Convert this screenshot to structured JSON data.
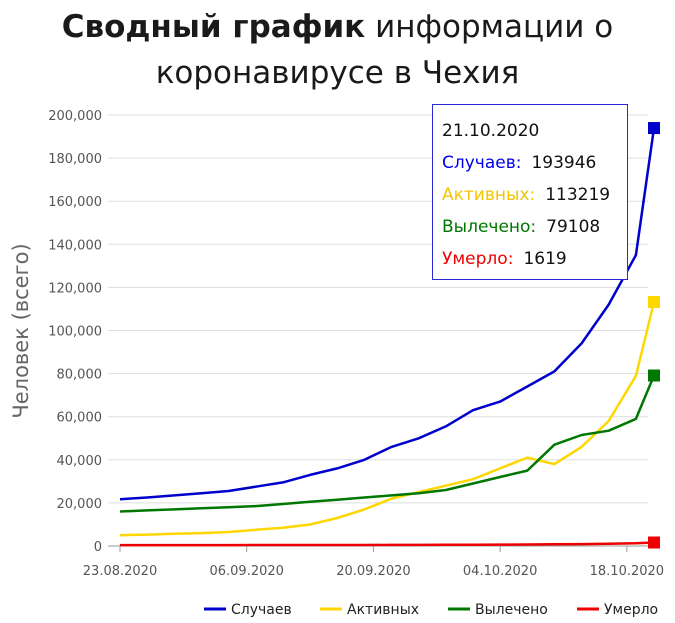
{
  "title": {
    "bold": "Сводный график",
    "rest_line1": "информации о",
    "line2": "коронавирусе в Чехия"
  },
  "chart_data": {
    "type": "line",
    "ylabel": "Человек (всего)",
    "y_ticks": [
      "0",
      "20,000",
      "40,000",
      "60,000",
      "80,000",
      "100,000",
      "120,000",
      "140,000",
      "160,000",
      "180,000",
      "200,000"
    ],
    "ylim": [
      0,
      200000
    ],
    "x_ticks": [
      "23.08.2020",
      "06.09.2020",
      "20.09.2020",
      "04.10.2020",
      "18.10.2020"
    ],
    "x_start": "2020-08-23",
    "x_end": "2020-10-21",
    "grid": true,
    "legend_position": "bottom",
    "x": [
      "2020-08-23",
      "2020-08-26",
      "2020-08-29",
      "2020-09-01",
      "2020-09-04",
      "2020-09-07",
      "2020-09-10",
      "2020-09-13",
      "2020-09-16",
      "2020-09-19",
      "2020-09-22",
      "2020-09-25",
      "2020-09-28",
      "2020-10-01",
      "2020-10-04",
      "2020-10-07",
      "2020-10-10",
      "2020-10-13",
      "2020-10-16",
      "2020-10-19",
      "2020-10-21"
    ],
    "series": [
      {
        "name": "Случаев",
        "color": "#0000cc",
        "values": [
          21700,
          22500,
          23500,
          24500,
          25500,
          27500,
          29500,
          33000,
          36000,
          40000,
          46000,
          50000,
          55500,
          63000,
          67000,
          74000,
          81000,
          94000,
          112000,
          135000,
          193946
        ]
      },
      {
        "name": "Активных",
        "color": "#ffd700",
        "values": [
          5000,
          5300,
          5700,
          6000,
          6500,
          7500,
          8500,
          10000,
          13000,
          17000,
          22000,
          25000,
          28000,
          31000,
          36000,
          41000,
          38000,
          46000,
          58000,
          79000,
          113219
        ]
      },
      {
        "name": "Вылечено",
        "color": "#007700",
        "values": [
          16000,
          16500,
          17000,
          17500,
          18000,
          18500,
          19500,
          20500,
          21500,
          22500,
          23500,
          24500,
          26000,
          29000,
          32000,
          35000,
          47000,
          51500,
          53500,
          59000,
          79108
        ]
      },
      {
        "name": "Умерло",
        "color": "#ee0000",
        "values": [
          420,
          425,
          430,
          435,
          440,
          445,
          450,
          455,
          460,
          470,
          490,
          520,
          560,
          600,
          650,
          700,
          780,
          900,
          1050,
          1250,
          1619
        ]
      }
    ]
  },
  "tooltip": {
    "date": "21.10.2020",
    "rows": [
      {
        "label": "Случаев:",
        "value": "193946",
        "color": "#0000ee"
      },
      {
        "label": "Активных:",
        "value": "113219",
        "color": "#f2c500"
      },
      {
        "label": "Вылечено:",
        "value": "79108",
        "color": "#007700"
      },
      {
        "label": "Умерло:",
        "value": "1619",
        "color": "#ee0000"
      }
    ]
  }
}
